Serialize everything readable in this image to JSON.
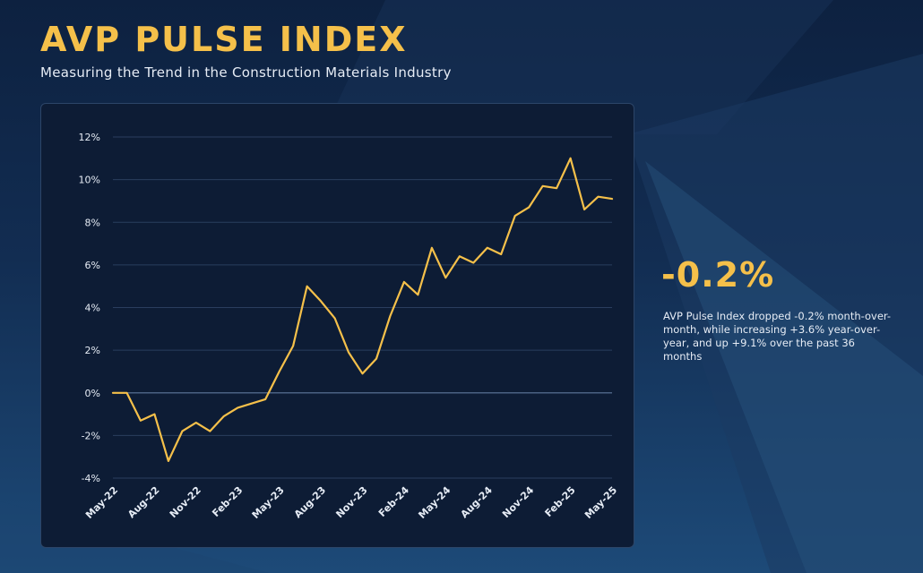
{
  "header": {
    "title": "AVP PULSE INDEX",
    "subtitle": "Measuring the Trend in the Construction Materials Industry"
  },
  "highlight": {
    "value": "-0.2%",
    "description": "AVP Pulse Index dropped -0.2% month-over-month, while increasing +3.6% year-over-year, and up +9.1% over the past 36 months"
  },
  "colors": {
    "accent": "#f5c04a",
    "line": "#f5c04a",
    "panel": "#0d1c35",
    "grid": "#2a3e5e"
  },
  "chart_data": {
    "type": "line",
    "title": "",
    "xlabel": "",
    "ylabel": "",
    "ylim": [
      -4,
      12
    ],
    "y_ticks": [
      "-4%",
      "-2%",
      "0%",
      "2%",
      "4%",
      "6%",
      "8%",
      "10%",
      "12%"
    ],
    "y_tick_values": [
      -4,
      -2,
      0,
      2,
      4,
      6,
      8,
      10,
      12
    ],
    "x_tick_labels": [
      "May-22",
      "Aug-22",
      "Nov-22",
      "Feb-23",
      "May-23",
      "Aug-23",
      "Nov-23",
      "Feb-24",
      "May-24",
      "Aug-24",
      "Nov-24",
      "Feb-25",
      "May-25"
    ],
    "grid": true,
    "legend": "none",
    "x": [
      "May-22",
      "Jun-22",
      "Jul-22",
      "Aug-22",
      "Sep-22",
      "Oct-22",
      "Nov-22",
      "Dec-22",
      "Jan-23",
      "Feb-23",
      "Mar-23",
      "Apr-23",
      "May-23",
      "Jun-23",
      "Jul-23",
      "Aug-23",
      "Sep-23",
      "Oct-23",
      "Nov-23",
      "Dec-23",
      "Jan-24",
      "Feb-24",
      "Mar-24",
      "Apr-24",
      "May-24",
      "Jun-24",
      "Jul-24",
      "Aug-24",
      "Sep-24",
      "Oct-24",
      "Nov-24",
      "Dec-24",
      "Jan-25",
      "Feb-25",
      "Mar-25",
      "Apr-25",
      "May-25"
    ],
    "series": [
      {
        "values": [
          0.0,
          0.0,
          -1.3,
          -1.0,
          -3.2,
          -1.8,
          -1.4,
          -1.8,
          -1.1,
          -0.7,
          -0.5,
          -0.3,
          1.0,
          2.2,
          5.0,
          4.3,
          3.5,
          1.9,
          0.9,
          1.6,
          3.6,
          5.2,
          4.6,
          6.8,
          5.4,
          6.4,
          6.1,
          6.8,
          6.5,
          8.3,
          8.7,
          9.7,
          9.6,
          11.0,
          8.6,
          9.2,
          9.1
        ]
      }
    ]
  }
}
